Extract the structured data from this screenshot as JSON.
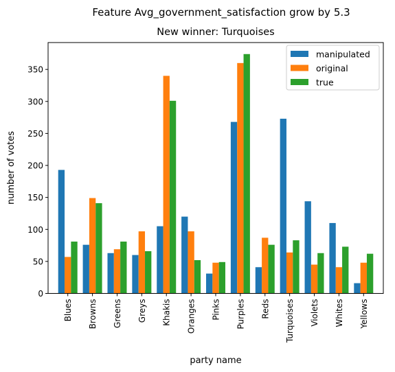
{
  "chart_data": {
    "type": "bar",
    "suptitle": "Feature Avg_government_satisfaction grow by 5.3",
    "title": "New winner: Turquoises",
    "xlabel": "party name",
    "ylabel": "number of votes",
    "ylim": [
      0,
      392
    ],
    "yticks": [
      0,
      50,
      100,
      150,
      200,
      250,
      300,
      350
    ],
    "grid": false,
    "legend_position": "top-right",
    "categories": [
      "Blues",
      "Browns",
      "Greens",
      "Greys",
      "Khakis",
      "Oranges",
      "Pinks",
      "Purples",
      "Reds",
      "Turquoises",
      "Violets",
      "Whites",
      "Yellows"
    ],
    "series": [
      {
        "name": "manipulated",
        "color": "#1f77b4",
        "values": [
          193,
          76,
          63,
          60,
          105,
          120,
          31,
          268,
          41,
          273,
          144,
          110,
          16
        ]
      },
      {
        "name": "original",
        "color": "#ff7f0e",
        "values": [
          57,
          149,
          69,
          97,
          340,
          97,
          48,
          360,
          87,
          64,
          45,
          41,
          48
        ]
      },
      {
        "name": "true",
        "color": "#2ca02c",
        "values": [
          81,
          141,
          81,
          66,
          301,
          52,
          49,
          374,
          76,
          83,
          63,
          73,
          62
        ]
      }
    ]
  }
}
